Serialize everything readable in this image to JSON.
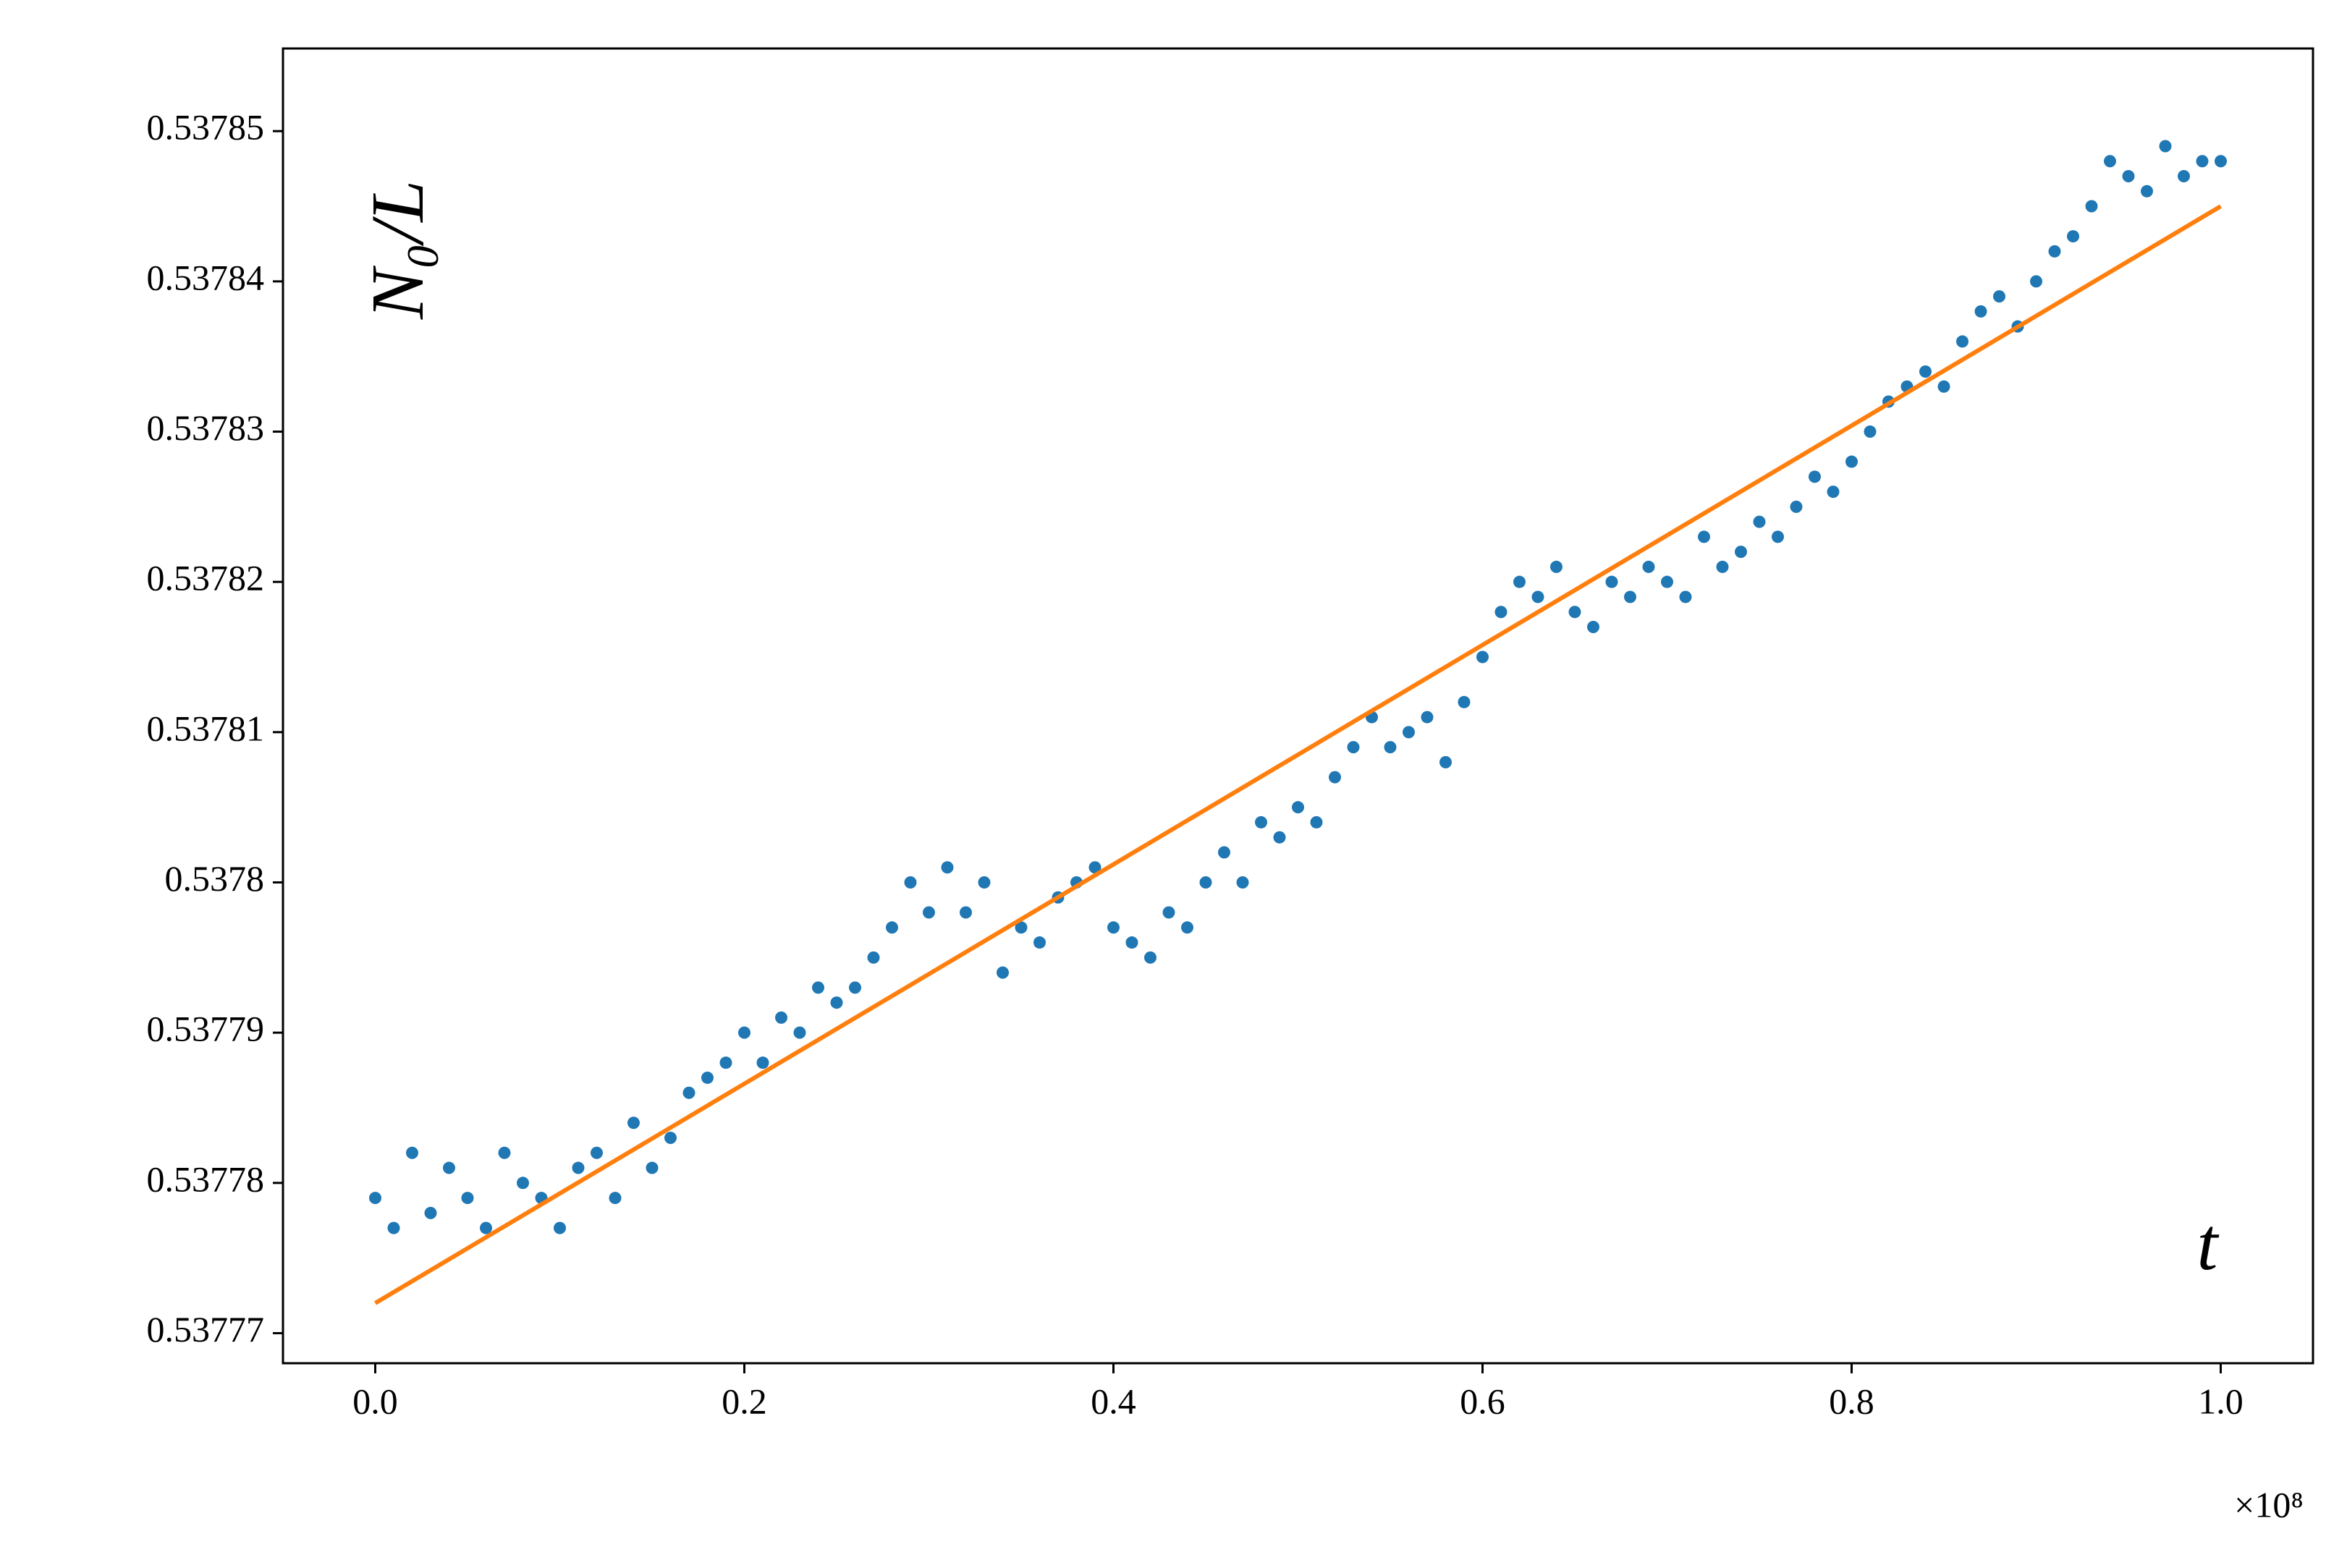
{
  "chart_data": {
    "type": "scatter",
    "y_label": "N₀/L",
    "x_label": "t",
    "x_offset_label": "×10⁸",
    "color": "#1f77b4",
    "x": [
      0,
      0.01,
      0.02,
      0.03,
      0.04,
      0.05,
      0.06,
      0.07,
      0.08,
      0.09,
      0.1,
      0.11,
      0.12,
      0.13,
      0.14,
      0.15,
      0.16,
      0.17,
      0.18,
      0.19,
      0.2,
      0.21,
      0.22,
      0.23,
      0.24,
      0.25,
      0.26,
      0.27,
      0.28,
      0.29,
      0.3,
      0.31,
      0.32,
      0.33,
      0.34,
      0.35,
      0.36,
      0.37,
      0.38,
      0.39,
      0.4,
      0.41,
      0.42,
      0.43,
      0.44,
      0.45,
      0.46,
      0.47,
      0.48,
      0.49,
      0.5,
      0.51,
      0.52,
      0.53,
      0.54,
      0.55,
      0.56,
      0.57,
      0.58,
      0.59,
      0.6,
      0.61,
      0.62,
      0.63,
      0.64,
      0.65,
      0.66,
      0.67,
      0.68,
      0.69,
      0.7,
      0.71,
      0.72,
      0.73,
      0.74,
      0.75,
      0.76,
      0.77,
      0.78,
      0.79,
      0.8,
      0.81,
      0.82,
      0.83,
      0.84,
      0.85,
      0.86,
      0.87,
      0.88,
      0.89,
      0.9,
      0.91,
      0.92,
      0.93,
      0.94,
      0.95,
      0.96,
      0.97,
      0.98,
      0.99,
      1
    ],
    "values": [
      0.537779,
      0.537777,
      0.537782,
      0.537778,
      0.537781,
      0.537779,
      0.537777,
      0.537782,
      0.53778,
      0.537779,
      0.537777,
      0.537781,
      0.537782,
      0.537779,
      0.537784,
      0.537781,
      0.537783,
      0.537786,
      0.537787,
      0.537788,
      0.53779,
      0.537788,
      0.537791,
      0.53779,
      0.537793,
      0.537792,
      0.537793,
      0.537795,
      0.537797,
      0.5378,
      0.537798,
      0.537801,
      0.537798,
      0.5378,
      0.537794,
      0.537797,
      0.537796,
      0.537799,
      0.5378,
      0.537801,
      0.537797,
      0.537796,
      0.537795,
      0.537798,
      0.537797,
      0.5378,
      0.537802,
      0.5378,
      0.537804,
      0.537803,
      0.537805,
      0.537804,
      0.537807,
      0.537809,
      0.537811,
      0.537809,
      0.53781,
      0.537811,
      0.537808,
      0.537812,
      0.537815,
      0.537818,
      0.53782,
      0.537819,
      0.537821,
      0.537818,
      0.537817,
      0.53782,
      0.537819,
      0.537821,
      0.53782,
      0.537819,
      0.537823,
      0.537821,
      0.537822,
      0.537824,
      0.537823,
      0.537825,
      0.537827,
      0.537826,
      0.537828,
      0.53783,
      0.537832,
      0.537833,
      0.537834,
      0.537833,
      0.537836,
      0.537838,
      0.537839,
      0.537837,
      0.53784,
      0.537842,
      0.537843,
      0.537845,
      0.537848,
      0.537847,
      0.537846,
      0.537849,
      0.537847,
      0.537848,
      0.537848
    ],
    "fit": {
      "type": "line",
      "color": "#ff7f0e",
      "x": [
        0,
        1
      ],
      "values": [
        0.537772,
        0.537845
      ]
    },
    "xlim": [
      -0.05,
      1.05
    ],
    "ylim": [
      0.537768,
      0.5378555
    ],
    "xticks": [
      {
        "value": 0,
        "label": "0.0"
      },
      0.2,
      0.4,
      0.6,
      0.8,
      {
        "value": 1,
        "label": "1.0"
      }
    ],
    "yticks": [
      0.53777,
      0.53778,
      0.53779,
      0.5378,
      0.53781,
      0.53782,
      0.53783,
      0.53784,
      0.53785
    ]
  }
}
